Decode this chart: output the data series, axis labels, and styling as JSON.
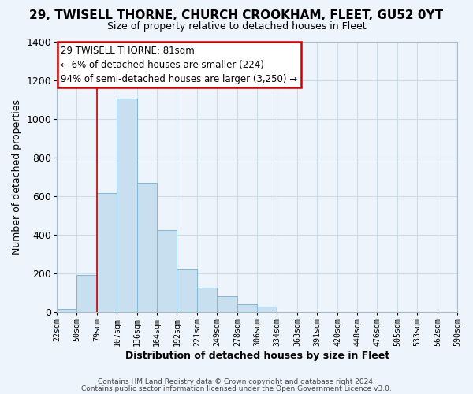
{
  "title": "29, TWISELL THORNE, CHURCH CROOKHAM, FLEET, GU52 0YT",
  "subtitle": "Size of property relative to detached houses in Fleet",
  "xlabel": "Distribution of detached houses by size in Fleet",
  "ylabel": "Number of detached properties",
  "bar_edges": [
    22,
    50,
    79,
    107,
    136,
    164,
    192,
    221,
    249,
    278,
    306,
    334,
    363,
    391,
    420,
    448,
    476,
    505,
    533,
    562,
    590
  ],
  "bar_heights": [
    15,
    190,
    615,
    1105,
    670,
    425,
    220,
    125,
    80,
    40,
    30,
    0,
    0,
    0,
    0,
    0,
    0,
    0,
    0,
    0
  ],
  "bar_color": "#c8dff0",
  "bar_edgecolor": "#7fb8d4",
  "redline_x": 79,
  "annotation_line1": "29 TWISELL THORNE: 81sqm",
  "annotation_line2": "← 6% of detached houses are smaller (224)",
  "annotation_line3": "94% of semi-detached houses are larger (3,250) →",
  "annotation_box_edgecolor": "#cc0000",
  "annotation_box_facecolor": "#ffffff",
  "redline_color": "#cc0000",
  "ylim": [
    0,
    1400
  ],
  "yticks": [
    0,
    200,
    400,
    600,
    800,
    1000,
    1200,
    1400
  ],
  "xtick_labels": [
    "22sqm",
    "50sqm",
    "79sqm",
    "107sqm",
    "136sqm",
    "164sqm",
    "192sqm",
    "221sqm",
    "249sqm",
    "278sqm",
    "306sqm",
    "334sqm",
    "363sqm",
    "391sqm",
    "420sqm",
    "448sqm",
    "476sqm",
    "505sqm",
    "533sqm",
    "562sqm",
    "590sqm"
  ],
  "footer1": "Contains HM Land Registry data © Crown copyright and database right 2024.",
  "footer2": "Contains public sector information licensed under the Open Government Licence v3.0.",
  "grid_color": "#ccdde8",
  "background_color": "#eef4fb",
  "title_fontsize": 11,
  "subtitle_fontsize": 9,
  "xlabel_fontsize": 9,
  "ylabel_fontsize": 9
}
